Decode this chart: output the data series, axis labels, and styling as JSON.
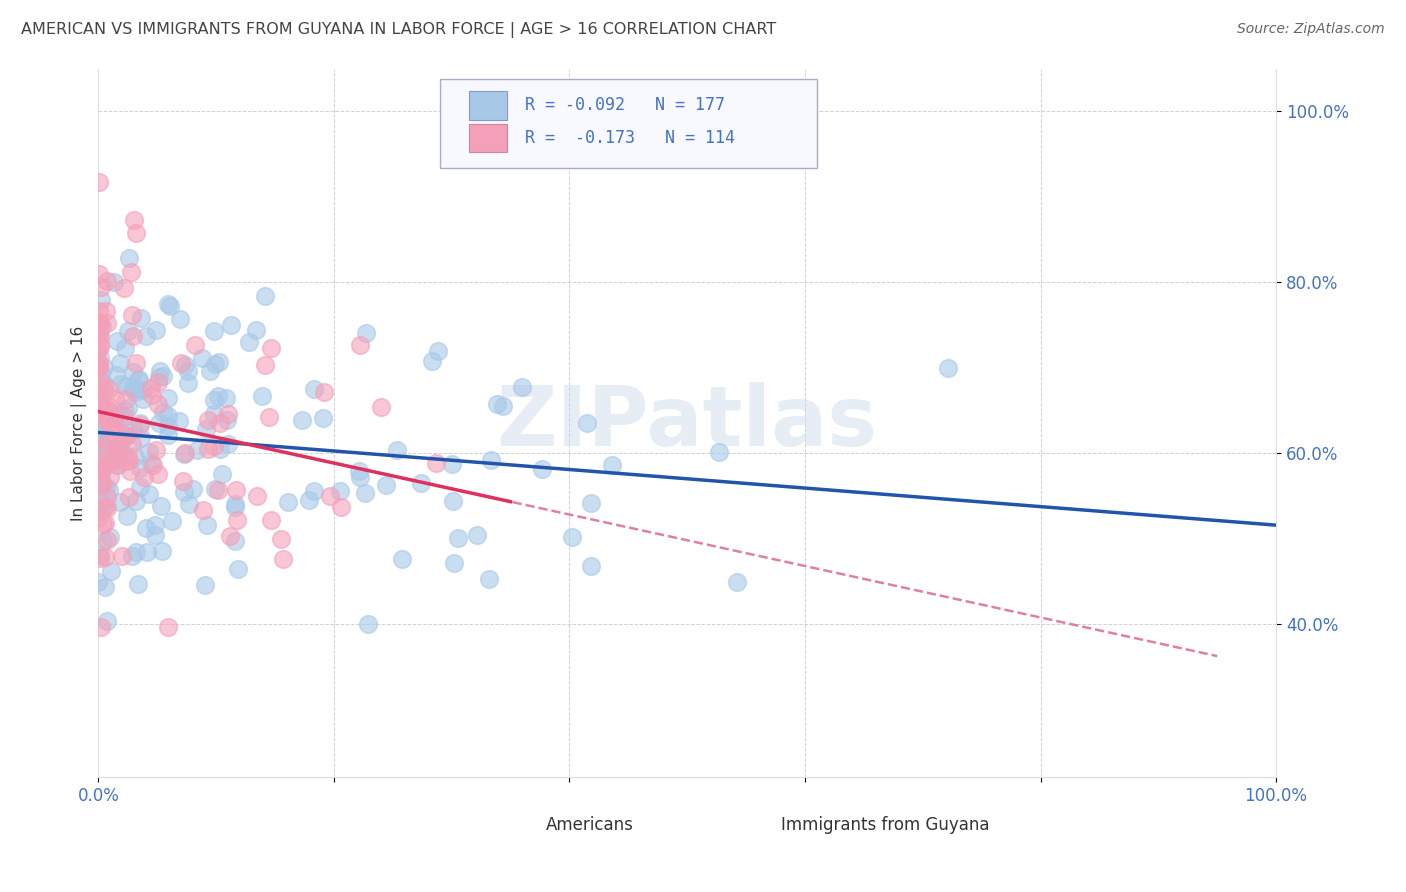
{
  "title": "AMERICAN VS IMMIGRANTS FROM GUYANA IN LABOR FORCE | AGE > 16 CORRELATION CHART",
  "source": "Source: ZipAtlas.com",
  "ylabel": "In Labor Force | Age > 16",
  "xlim": [
    0.0,
    1.0
  ],
  "ylim": [
    0.22,
    1.05
  ],
  "x_tick_vals": [
    0.0,
    0.2,
    0.4,
    0.6,
    0.8,
    1.0
  ],
  "x_tick_labels": [
    "0.0%",
    "",
    "",
    "",
    "",
    "100.0%"
  ],
  "y_tick_vals": [
    0.4,
    0.6,
    0.8,
    1.0
  ],
  "y_tick_labels": [
    "40.0%",
    "60.0%",
    "80.0%",
    "100.0%"
  ],
  "american_color": "#a8c8e8",
  "immigrant_color": "#f4a0b8",
  "american_line_color": "#2255aa",
  "immigrant_line_solid_color": "#e03060",
  "immigrant_line_dash_color": "#e080a0",
  "R_american": -0.092,
  "N_american": 177,
  "R_immigrant": -0.173,
  "N_immigrant": 114,
  "legend_label_american": "Americans",
  "legend_label_immigrant": "Immigrants from Guyana",
  "watermark": "ZIPatlas",
  "background_color": "#ffffff",
  "grid_color": "#cccccc",
  "title_color": "#444444",
  "source_color": "#666666",
  "tick_color": "#4472c4",
  "label_color": "#333333"
}
